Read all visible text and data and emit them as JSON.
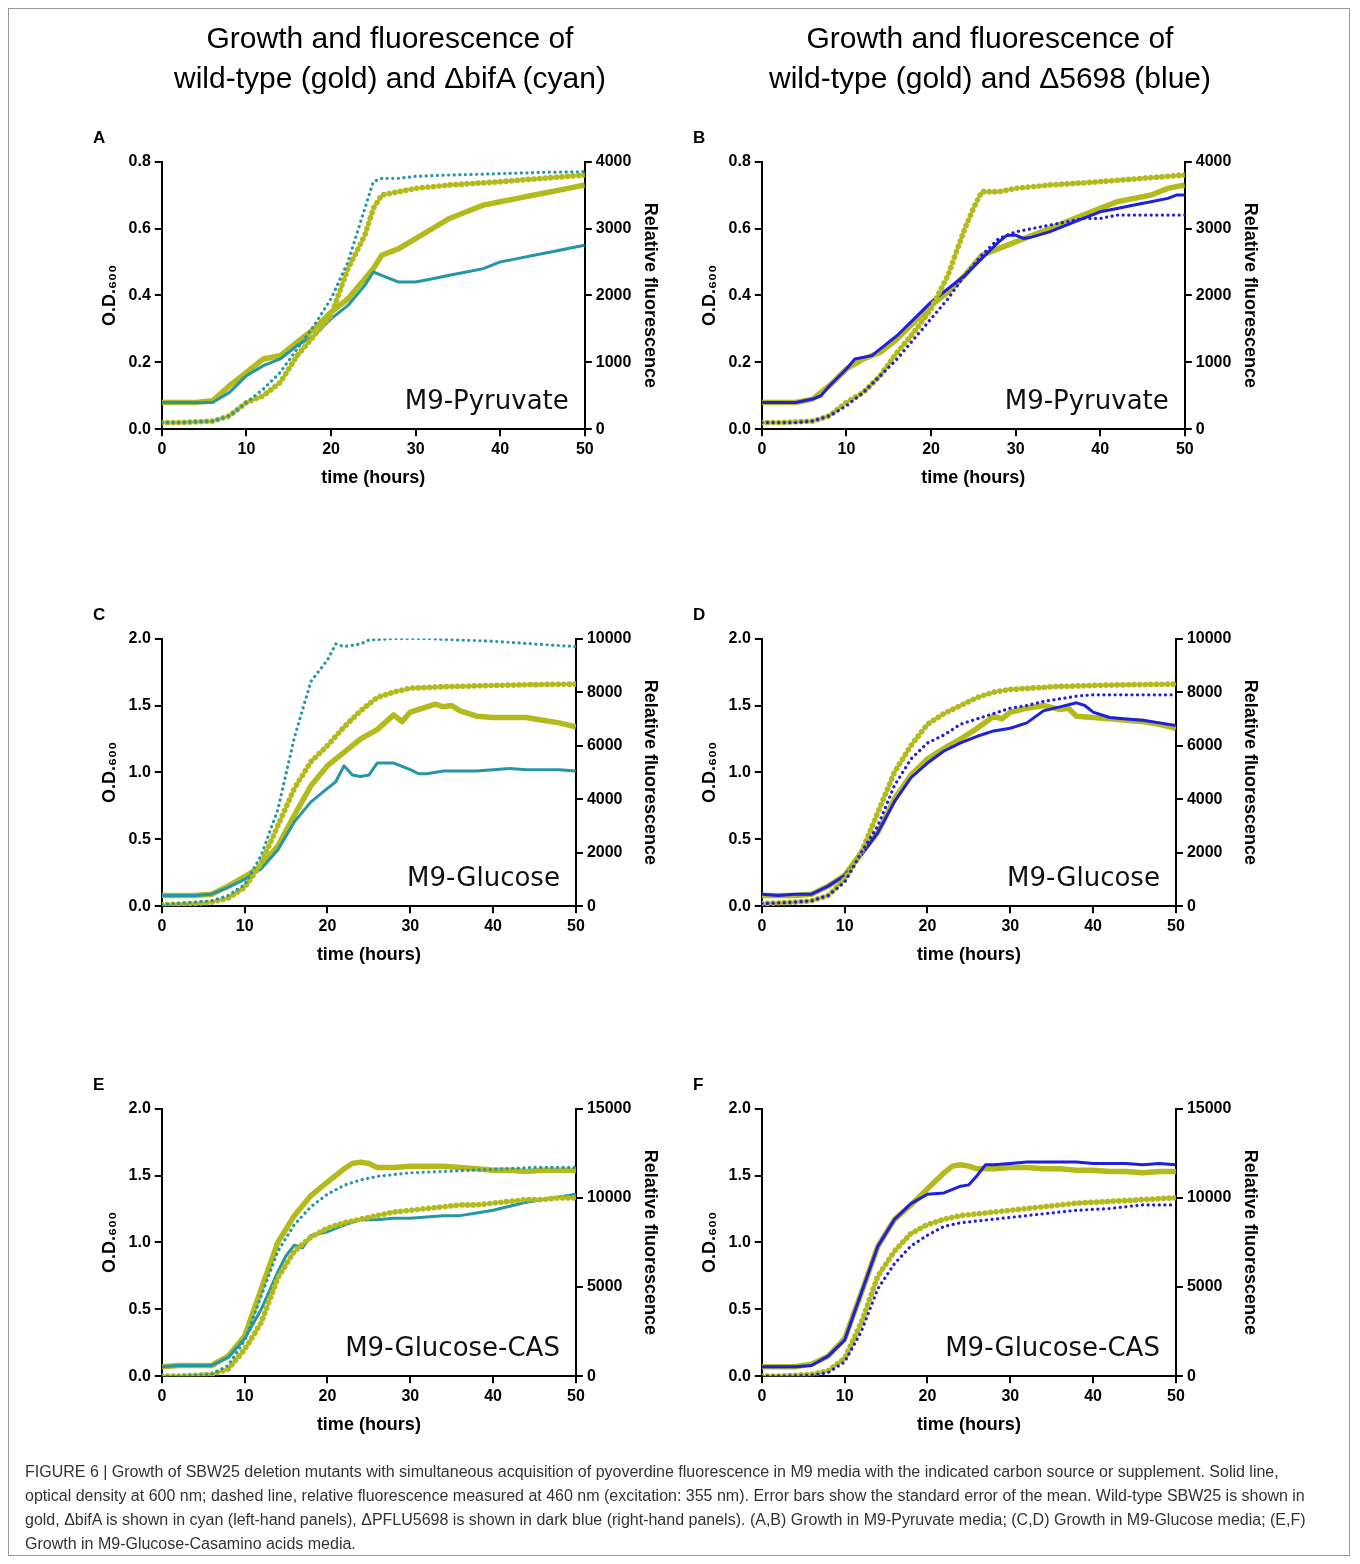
{
  "chart_data": [
    {
      "type": "line",
      "title": "Growth and fluorescence of wild-type (gold) and ΔbifA (cyan)",
      "subtitle": "A",
      "xlabel": "time (hours)",
      "ylabel": "O.D.₆₀₀",
      "y2label": "Relative fluorescence",
      "annotations": [
        "M9-Pyruvate"
      ],
      "xlim": [
        0,
        50
      ],
      "xticks": [
        0,
        10,
        20,
        30,
        40,
        50
      ],
      "ylim": [
        0,
        0.8
      ],
      "yticks": [
        {
          "value": 0,
          "label": "0.0"
        },
        {
          "value": 0.2,
          "label": "0.2"
        },
        {
          "value": 0.4,
          "label": "0.4"
        },
        {
          "value": 0.6,
          "label": "0.6"
        },
        {
          "value": 0.8,
          "label": "0.8"
        }
      ],
      "y2lim": [
        0,
        4000
      ],
      "y2ticks": [
        0,
        1000,
        2000,
        3000,
        4000
      ],
      "grid": false,
      "legend": false,
      "marker": "none",
      "series": [
        {
          "color": "#b3bb1c",
          "axis": "y",
          "line_style": "solid",
          "x": [
            0,
            2,
            4,
            6,
            8,
            10,
            12,
            14,
            16,
            18,
            20,
            22,
            24,
            25,
            26,
            28,
            30,
            32,
            34,
            36,
            38,
            40,
            42,
            44,
            46,
            48,
            50
          ],
          "values": [
            0.08,
            0.08,
            0.08,
            0.085,
            0.13,
            0.17,
            0.21,
            0.22,
            0.26,
            0.3,
            0.35,
            0.39,
            0.45,
            0.48,
            0.52,
            0.54,
            0.57,
            0.6,
            0.63,
            0.65,
            0.67,
            0.68,
            0.69,
            0.7,
            0.71,
            0.72,
            0.73
          ]
        },
        {
          "color": "#2596a8",
          "axis": "y",
          "line_style": "solid",
          "x": [
            0,
            2,
            4,
            6,
            8,
            10,
            12,
            14,
            16,
            18,
            20,
            22,
            24,
            25,
            26,
            28,
            30,
            32,
            34,
            36,
            38,
            40,
            42,
            44,
            46,
            48,
            50
          ],
          "values": [
            0.08,
            0.08,
            0.08,
            0.08,
            0.11,
            0.16,
            0.19,
            0.21,
            0.25,
            0.28,
            0.33,
            0.37,
            0.43,
            0.47,
            0.46,
            0.44,
            0.44,
            0.45,
            0.46,
            0.47,
            0.48,
            0.5,
            0.51,
            0.52,
            0.53,
            0.54,
            0.55
          ]
        },
        {
          "color": "#b3bb1c",
          "axis": "y2",
          "line_style": "dotted",
          "x": [
            0,
            2,
            4,
            6,
            8,
            10,
            12,
            14,
            16,
            18,
            20,
            22,
            24,
            25,
            26,
            28,
            30,
            34,
            40,
            45,
            50
          ],
          "values": [
            100,
            100,
            110,
            120,
            200,
            400,
            500,
            700,
            1100,
            1400,
            1700,
            2400,
            2900,
            3300,
            3500,
            3550,
            3600,
            3650,
            3700,
            3750,
            3800
          ]
        },
        {
          "color": "#2596a8",
          "axis": "y2",
          "line_style": "dotted",
          "x": [
            0,
            2,
            4,
            6,
            8,
            10,
            12,
            14,
            16,
            18,
            20,
            22,
            24,
            25,
            26,
            28,
            30,
            34,
            40,
            45,
            50
          ],
          "values": [
            100,
            100,
            110,
            120,
            200,
            400,
            600,
            850,
            1200,
            1550,
            1950,
            2500,
            3300,
            3700,
            3750,
            3750,
            3780,
            3800,
            3820,
            3840,
            3850
          ]
        }
      ]
    },
    {
      "type": "line",
      "title": "Growth and fluorescence of wild-type (gold) and Δ5698 (blue)",
      "subtitle": "B",
      "xlabel": "time (hours)",
      "ylabel": "O.D.₆₀₀",
      "y2label": "Relative fluorescence",
      "annotations": [
        "M9-Pyruvate"
      ],
      "xlim": [
        0,
        50
      ],
      "xticks": [
        0,
        10,
        20,
        30,
        40,
        50
      ],
      "ylim": [
        0,
        0.8
      ],
      "yticks": [
        {
          "value": 0,
          "label": "0.0"
        },
        {
          "value": 0.2,
          "label": "0.2"
        },
        {
          "value": 0.4,
          "label": "0.4"
        },
        {
          "value": 0.6,
          "label": "0.6"
        },
        {
          "value": 0.8,
          "label": "0.8"
        }
      ],
      "y2lim": [
        0,
        4000
      ],
      "y2ticks": [
        0,
        1000,
        2000,
        3000,
        4000
      ],
      "grid": false,
      "legend": false,
      "marker": "none",
      "series": [
        {
          "color": "#b3bb1c",
          "axis": "y",
          "line_style": "solid",
          "x": [
            0,
            2,
            4,
            6,
            8,
            10,
            12,
            14,
            16,
            18,
            20,
            22,
            24,
            26,
            28,
            30,
            32,
            34,
            36,
            38,
            40,
            42,
            44,
            46,
            48,
            50
          ],
          "values": [
            0.08,
            0.08,
            0.08,
            0.09,
            0.13,
            0.18,
            0.21,
            0.23,
            0.27,
            0.32,
            0.37,
            0.41,
            0.46,
            0.52,
            0.54,
            0.56,
            0.58,
            0.6,
            0.62,
            0.64,
            0.66,
            0.68,
            0.69,
            0.7,
            0.72,
            0.73
          ]
        },
        {
          "color": "#1f1fe0",
          "axis": "y",
          "line_style": "solid",
          "x": [
            0,
            2,
            4,
            6,
            7,
            8,
            10,
            11,
            13,
            14,
            16,
            18,
            20,
            22,
            24,
            26,
            28,
            29,
            30,
            31,
            32,
            34,
            36,
            38,
            40,
            42,
            44,
            46,
            48,
            49,
            50
          ],
          "values": [
            0.08,
            0.08,
            0.08,
            0.09,
            0.1,
            0.13,
            0.18,
            0.21,
            0.22,
            0.24,
            0.28,
            0.33,
            0.38,
            0.42,
            0.46,
            0.51,
            0.56,
            0.58,
            0.58,
            0.57,
            0.575,
            0.59,
            0.61,
            0.63,
            0.65,
            0.66,
            0.67,
            0.68,
            0.69,
            0.7,
            0.7
          ]
        },
        {
          "color": "#b3bb1c",
          "axis": "y2",
          "line_style": "dotted",
          "x": [
            0,
            2,
            4,
            6,
            8,
            10,
            12,
            14,
            16,
            18,
            20,
            22,
            24,
            25,
            26,
            28,
            30,
            34,
            40,
            45,
            50
          ],
          "values": [
            100,
            100,
            110,
            120,
            200,
            400,
            550,
            800,
            1150,
            1450,
            1800,
            2300,
            3000,
            3300,
            3550,
            3550,
            3600,
            3650,
            3700,
            3750,
            3800
          ]
        },
        {
          "color": "#1f1fe0",
          "axis": "y2",
          "line_style": "dotted",
          "x": [
            0,
            2,
            4,
            6,
            8,
            10,
            12,
            14,
            16,
            18,
            20,
            22,
            24,
            26,
            28,
            30,
            32,
            34,
            36,
            38,
            40,
            42,
            44,
            46,
            48,
            50
          ],
          "values": [
            100,
            100,
            100,
            120,
            200,
            350,
            550,
            800,
            1050,
            1350,
            1650,
            1950,
            2300,
            2600,
            2850,
            2950,
            3000,
            3050,
            3100,
            3150,
            3150,
            3200,
            3200,
            3200,
            3200,
            3200
          ]
        }
      ]
    },
    {
      "type": "line",
      "subtitle": "C",
      "xlabel": "time (hours)",
      "ylabel": "O.D.₆₀₀",
      "y2label": "Relative fluorescence",
      "annotations": [
        "M9-Glucose"
      ],
      "xlim": [
        0,
        50
      ],
      "xticks": [
        0,
        10,
        20,
        30,
        40,
        50
      ],
      "ylim": [
        0,
        2
      ],
      "yticks": [
        {
          "value": 0,
          "label": "0.0"
        },
        {
          "value": 0.5,
          "label": "0.5"
        },
        {
          "value": 1,
          "label": "1.0"
        },
        {
          "value": 1.5,
          "label": "1.5"
        },
        {
          "value": 2,
          "label": "2.0"
        }
      ],
      "y2lim": [
        0,
        10000
      ],
      "y2ticks": [
        0,
        2000,
        4000,
        6000,
        8000,
        10000
      ],
      "grid": false,
      "legend": false,
      "marker": "none",
      "series": [
        {
          "color": "#b3bb1c",
          "axis": "y",
          "line_style": "solid",
          "x": [
            0,
            2,
            4,
            6,
            8,
            10,
            12,
            14,
            16,
            18,
            20,
            22,
            24,
            26,
            28,
            29,
            30,
            32,
            33,
            34,
            35,
            36,
            38,
            40,
            42,
            44,
            46,
            48,
            50
          ],
          "values": [
            0.08,
            0.08,
            0.08,
            0.09,
            0.15,
            0.22,
            0.3,
            0.45,
            0.68,
            0.9,
            1.05,
            1.15,
            1.25,
            1.32,
            1.43,
            1.38,
            1.45,
            1.49,
            1.51,
            1.49,
            1.5,
            1.46,
            1.42,
            1.41,
            1.41,
            1.41,
            1.39,
            1.37,
            1.34
          ]
        },
        {
          "color": "#2596a8",
          "axis": "y",
          "line_style": "solid",
          "x": [
            0,
            2,
            4,
            6,
            8,
            10,
            12,
            14,
            16,
            18,
            20,
            21,
            22,
            23,
            24,
            25,
            26,
            28,
            30,
            31,
            32,
            34,
            36,
            38,
            40,
            42,
            44,
            46,
            48,
            50
          ],
          "values": [
            0.08,
            0.08,
            0.08,
            0.09,
            0.14,
            0.2,
            0.28,
            0.42,
            0.63,
            0.78,
            0.88,
            0.93,
            1.05,
            0.98,
            0.97,
            0.98,
            1.07,
            1.07,
            1.02,
            0.99,
            0.99,
            1.01,
            1.01,
            1.01,
            1.02,
            1.03,
            1.02,
            1.02,
            1.02,
            1.01
          ]
        },
        {
          "color": "#b3bb1c",
          "axis": "y2",
          "line_style": "dotted",
          "x": [
            0,
            2,
            4,
            6,
            8,
            10,
            12,
            14,
            16,
            18,
            20,
            22,
            24,
            26,
            28,
            30,
            34,
            40,
            45,
            50
          ],
          "values": [
            50,
            80,
            100,
            150,
            300,
            700,
            1600,
            3000,
            4400,
            5400,
            6000,
            6700,
            7300,
            7800,
            8000,
            8150,
            8200,
            8250,
            8280,
            8300
          ]
        },
        {
          "color": "#2596a8",
          "axis": "y2",
          "line_style": "dotted",
          "x": [
            0,
            2,
            4,
            6,
            8,
            10,
            12,
            14,
            16,
            18,
            20,
            21,
            22,
            24,
            25,
            28,
            32,
            36,
            40,
            45,
            50
          ],
          "values": [
            50,
            100,
            150,
            200,
            400,
            800,
            1900,
            3600,
            6300,
            8400,
            9200,
            9800,
            9700,
            9800,
            9950,
            10000,
            10000,
            9950,
            9900,
            9800,
            9700
          ]
        }
      ]
    },
    {
      "type": "line",
      "subtitle": "D",
      "xlabel": "time (hours)",
      "ylabel": "O.D.₆₀₀",
      "y2label": "Relative fluorescence",
      "annotations": [
        "M9-Glucose"
      ],
      "xlim": [
        0,
        50
      ],
      "xticks": [
        0,
        10,
        20,
        30,
        40,
        50
      ],
      "ylim": [
        0,
        2
      ],
      "yticks": [
        {
          "value": 0,
          "label": "0.0"
        },
        {
          "value": 0.5,
          "label": "0.5"
        },
        {
          "value": 1,
          "label": "1.0"
        },
        {
          "value": 1.5,
          "label": "1.5"
        },
        {
          "value": 2,
          "label": "2.0"
        }
      ],
      "y2lim": [
        0,
        10000
      ],
      "y2ticks": [
        0,
        2000,
        4000,
        6000,
        8000,
        10000
      ],
      "grid": false,
      "legend": false,
      "marker": "none",
      "series": [
        {
          "color": "#b3bb1c",
          "axis": "y",
          "line_style": "solid",
          "x": [
            0,
            2,
            4,
            6,
            8,
            10,
            12,
            14,
            16,
            18,
            20,
            22,
            24,
            26,
            28,
            29,
            30,
            32,
            34,
            36,
            37,
            38,
            40,
            42,
            44,
            46,
            48,
            50
          ],
          "values": [
            0.08,
            0.08,
            0.08,
            0.09,
            0.15,
            0.23,
            0.4,
            0.55,
            0.8,
            0.98,
            1.1,
            1.18,
            1.25,
            1.33,
            1.42,
            1.4,
            1.45,
            1.48,
            1.5,
            1.47,
            1.48,
            1.42,
            1.41,
            1.4,
            1.39,
            1.38,
            1.36,
            1.33
          ]
        },
        {
          "color": "#1f1fe0",
          "axis": "y",
          "line_style": "solid",
          "x": [
            0,
            2,
            4,
            6,
            8,
            10,
            12,
            14,
            16,
            18,
            20,
            22,
            24,
            26,
            28,
            30,
            32,
            34,
            36,
            38,
            39,
            40,
            42,
            44,
            46,
            48,
            50
          ],
          "values": [
            0.09,
            0.08,
            0.09,
            0.09,
            0.15,
            0.23,
            0.38,
            0.55,
            0.78,
            0.96,
            1.07,
            1.16,
            1.22,
            1.27,
            1.31,
            1.33,
            1.37,
            1.46,
            1.49,
            1.52,
            1.5,
            1.45,
            1.41,
            1.4,
            1.39,
            1.37,
            1.35
          ]
        },
        {
          "color": "#b3bb1c",
          "axis": "y2",
          "line_style": "dotted",
          "x": [
            0,
            2,
            4,
            6,
            8,
            10,
            12,
            14,
            16,
            18,
            20,
            22,
            24,
            26,
            28,
            30,
            35,
            40,
            45,
            50
          ],
          "values": [
            100,
            120,
            150,
            200,
            400,
            1000,
            2000,
            3500,
            5000,
            6000,
            6800,
            7200,
            7500,
            7800,
            8000,
            8100,
            8200,
            8250,
            8280,
            8300
          ]
        },
        {
          "color": "#1f1fe0",
          "axis": "y2",
          "line_style": "dotted",
          "x": [
            0,
            2,
            4,
            6,
            8,
            10,
            12,
            14,
            16,
            18,
            20,
            22,
            24,
            26,
            28,
            30,
            32,
            34,
            36,
            38,
            40,
            45,
            50
          ],
          "values": [
            100,
            120,
            150,
            200,
            400,
            900,
            2000,
            3000,
            4500,
            5500,
            6100,
            6400,
            6800,
            7000,
            7200,
            7400,
            7500,
            7650,
            7750,
            7850,
            7900,
            7900,
            7900
          ]
        }
      ]
    },
    {
      "type": "line",
      "subtitle": "E",
      "xlabel": "time (hours)",
      "ylabel": "O.D.₆₀₀",
      "y2label": "Relative fluorescence",
      "annotations": [
        "M9-Glucose-CAS"
      ],
      "xlim": [
        0,
        50
      ],
      "xticks": [
        0,
        10,
        20,
        30,
        40,
        50
      ],
      "ylim": [
        0,
        2
      ],
      "yticks": [
        {
          "value": 0,
          "label": "0.0"
        },
        {
          "value": 0.5,
          "label": "0.5"
        },
        {
          "value": 1,
          "label": "1.0"
        },
        {
          "value": 1.5,
          "label": "1.5"
        },
        {
          "value": 2,
          "label": "2.0"
        }
      ],
      "y2lim": [
        0,
        15000
      ],
      "y2ticks": [
        0,
        5000,
        10000,
        15000
      ],
      "grid": false,
      "legend": false,
      "marker": "none",
      "series": [
        {
          "color": "#b3bb1c",
          "axis": "y",
          "line_style": "solid",
          "x": [
            0,
            2,
            4,
            6,
            8,
            10,
            12,
            14,
            16,
            18,
            20,
            22,
            23,
            24,
            25,
            26,
            28,
            30,
            32,
            34,
            36,
            38,
            40,
            42,
            44,
            46,
            48,
            50
          ],
          "values": [
            0.07,
            0.08,
            0.08,
            0.08,
            0.15,
            0.3,
            0.65,
            1.0,
            1.2,
            1.35,
            1.45,
            1.55,
            1.59,
            1.6,
            1.59,
            1.56,
            1.56,
            1.57,
            1.57,
            1.57,
            1.56,
            1.55,
            1.54,
            1.54,
            1.53,
            1.54,
            1.54,
            1.54
          ]
        },
        {
          "color": "#2596a8",
          "axis": "y",
          "line_style": "solid",
          "x": [
            0,
            2,
            4,
            6,
            8,
            10,
            12,
            14,
            15,
            16,
            17,
            18,
            20,
            22,
            24,
            26,
            28,
            30,
            32,
            34,
            36,
            38,
            40,
            42,
            44,
            46,
            48,
            50
          ],
          "values": [
            0.07,
            0.08,
            0.08,
            0.08,
            0.14,
            0.28,
            0.5,
            0.78,
            0.9,
            0.98,
            0.96,
            1.05,
            1.08,
            1.13,
            1.17,
            1.17,
            1.18,
            1.18,
            1.19,
            1.2,
            1.2,
            1.22,
            1.24,
            1.27,
            1.3,
            1.32,
            1.34,
            1.36
          ]
        },
        {
          "color": "#b3bb1c",
          "axis": "y2",
          "line_style": "dotted",
          "x": [
            0,
            2,
            4,
            6,
            8,
            10,
            12,
            14,
            16,
            18,
            20,
            22,
            24,
            26,
            28,
            30,
            32,
            34,
            36,
            38,
            40,
            42,
            44,
            46,
            48,
            50
          ],
          "values": [
            0,
            0,
            50,
            100,
            400,
            1500,
            3000,
            5500,
            7000,
            7800,
            8300,
            8600,
            8800,
            9000,
            9200,
            9300,
            9400,
            9500,
            9600,
            9600,
            9700,
            9800,
            9900,
            9900,
            10000,
            10000
          ]
        },
        {
          "color": "#2596a8",
          "axis": "y2",
          "line_style": "dotted",
          "x": [
            0,
            2,
            4,
            6,
            8,
            10,
            12,
            14,
            16,
            18,
            20,
            22,
            24,
            26,
            28,
            30,
            35,
            40,
            45,
            50
          ],
          "values": [
            0,
            0,
            50,
            100,
            600,
            2000,
            4500,
            7000,
            8500,
            9500,
            10200,
            10700,
            11000,
            11200,
            11300,
            11400,
            11500,
            11600,
            11700,
            11700
          ]
        }
      ]
    },
    {
      "type": "line",
      "subtitle": "F",
      "xlabel": "time (hours)",
      "ylabel": "O.D.₆₀₀",
      "y2label": "Relative fluorescence",
      "annotations": [
        "M9-Glucose-CAS",
        "FIGURE 6 | Growth of SBW25 deletion mutants with simultaneous acquisition of pyoverdine fluorescence in M9 media with the indicated carbon source or supplement. Solid line, optical density at 600 nm; dashed line, relative fluorescence measured at 460 nm (excitation: 355 nm). Error bars show the standard error of the mean. Wild-type SBW25 is shown in gold, ΔbifA is shown in cyan (left-hand panels), ΔPFLU5698 is shown in dark blue (right-hand panels). (A,B) Growth in M9-Pyruvate media; (C,D) Growth in M9-Glucose media; (E,F) Growth in M9-Glucose-Casamino acids media."
      ],
      "xlim": [
        0,
        50
      ],
      "xticks": [
        0,
        10,
        20,
        30,
        40,
        50
      ],
      "ylim": [
        0,
        2
      ],
      "yticks": [
        {
          "value": 0,
          "label": "0.0"
        },
        {
          "value": 0.5,
          "label": "0.5"
        },
        {
          "value": 1,
          "label": "1.0"
        },
        {
          "value": 1.5,
          "label": "1.5"
        },
        {
          "value": 2,
          "label": "2.0"
        }
      ],
      "y2lim": [
        0,
        15000
      ],
      "y2ticks": [
        0,
        5000,
        10000,
        15000
      ],
      "grid": false,
      "legend": false,
      "marker": "none",
      "series": [
        {
          "color": "#b3bb1c",
          "axis": "y",
          "line_style": "solid",
          "x": [
            0,
            2,
            4,
            6,
            8,
            10,
            12,
            14,
            16,
            18,
            20,
            22,
            23,
            24,
            25,
            26,
            28,
            30,
            32,
            34,
            36,
            38,
            40,
            42,
            44,
            46,
            48,
            50
          ],
          "values": [
            0.07,
            0.07,
            0.07,
            0.09,
            0.15,
            0.28,
            0.62,
            0.97,
            1.17,
            1.28,
            1.4,
            1.52,
            1.57,
            1.58,
            1.57,
            1.55,
            1.55,
            1.56,
            1.56,
            1.55,
            1.55,
            1.54,
            1.54,
            1.53,
            1.53,
            1.52,
            1.53,
            1.53
          ]
        },
        {
          "color": "#1f1fe0",
          "axis": "y",
          "line_style": "solid",
          "x": [
            0,
            2,
            4,
            6,
            8,
            10,
            12,
            14,
            16,
            18,
            20,
            22,
            24,
            25,
            26,
            27,
            28,
            30,
            32,
            34,
            36,
            38,
            40,
            42,
            44,
            46,
            48,
            50
          ],
          "values": [
            0.07,
            0.07,
            0.07,
            0.08,
            0.15,
            0.27,
            0.62,
            0.97,
            1.17,
            1.29,
            1.36,
            1.37,
            1.42,
            1.43,
            1.5,
            1.58,
            1.58,
            1.59,
            1.6,
            1.6,
            1.6,
            1.6,
            1.59,
            1.59,
            1.59,
            1.58,
            1.59,
            1.58
          ]
        },
        {
          "color": "#b3bb1c",
          "axis": "y2",
          "line_style": "dotted",
          "x": [
            0,
            2,
            4,
            6,
            8,
            10,
            12,
            14,
            16,
            18,
            20,
            22,
            24,
            26,
            28,
            30,
            34,
            38,
            42,
            46,
            50
          ],
          "values": [
            0,
            0,
            50,
            100,
            300,
            1000,
            3000,
            5600,
            7000,
            8000,
            8500,
            8800,
            9000,
            9100,
            9200,
            9300,
            9500,
            9700,
            9800,
            9900,
            10000
          ]
        },
        {
          "color": "#1f1fe0",
          "axis": "y2",
          "line_style": "dotted",
          "x": [
            0,
            2,
            4,
            6,
            8,
            10,
            12,
            14,
            16,
            18,
            20,
            22,
            24,
            26,
            28,
            30,
            34,
            38,
            42,
            46,
            50
          ],
          "values": [
            0,
            0,
            20,
            50,
            200,
            800,
            2500,
            4900,
            6300,
            7300,
            7900,
            8400,
            8600,
            8700,
            8800,
            8900,
            9100,
            9300,
            9400,
            9600,
            9600
          ]
        }
      ]
    }
  ]
}
